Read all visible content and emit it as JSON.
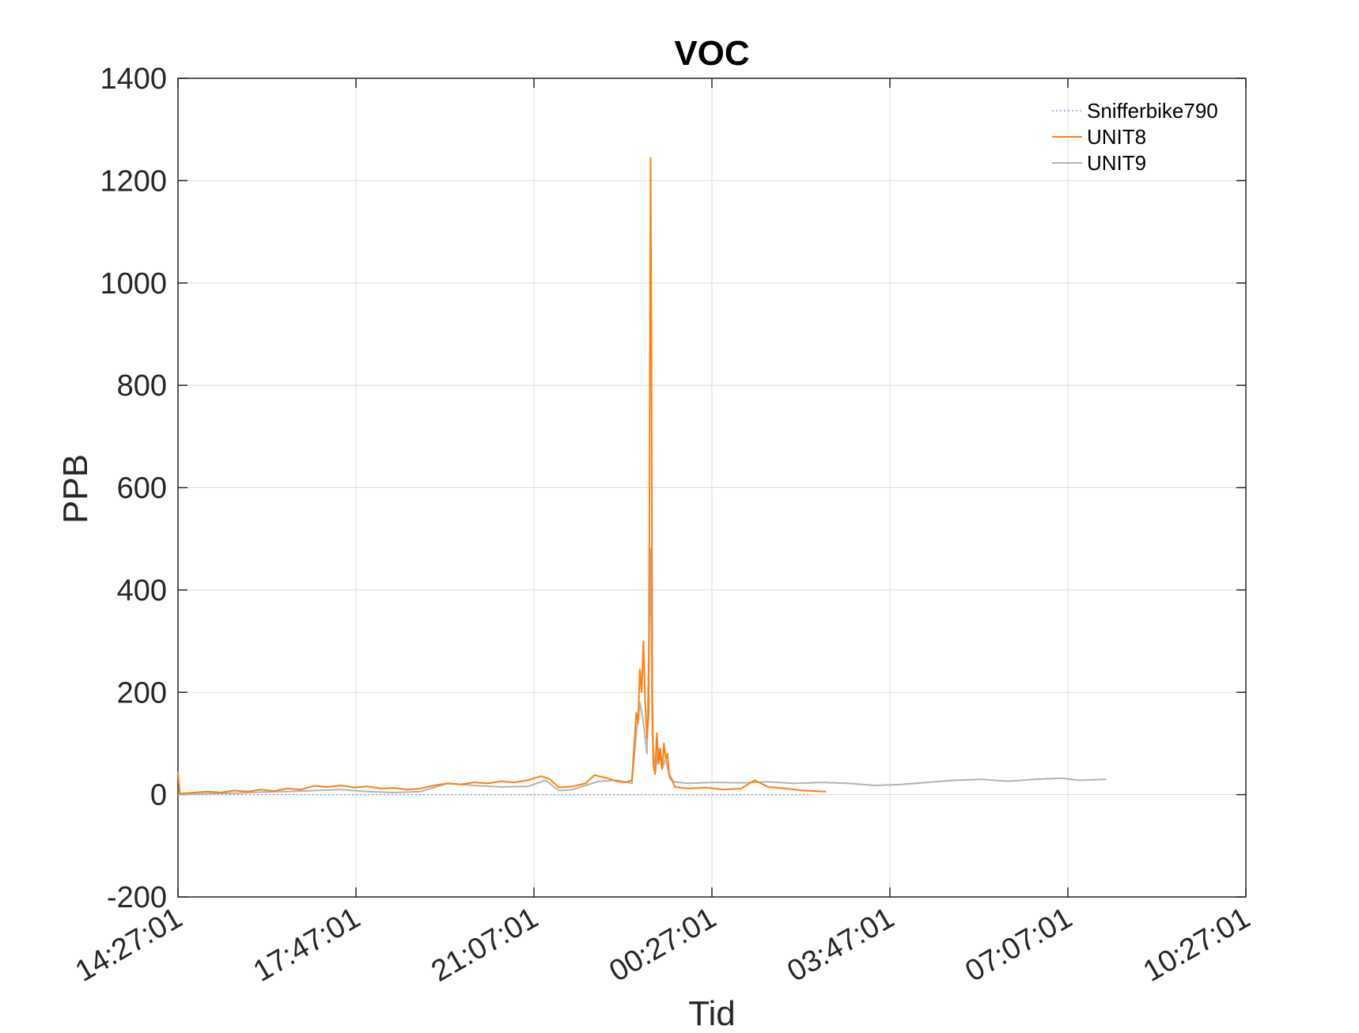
{
  "chart_data": {
    "type": "line",
    "title": "VOC",
    "xlabel": "Tid",
    "ylabel": "PPB",
    "ylim": [
      -200,
      1400
    ],
    "yticks": [
      -200,
      0,
      200,
      400,
      600,
      800,
      1000,
      1200,
      1400
    ],
    "xticks": [
      "14:27:01",
      "17:47:01",
      "21:07:01",
      "00:27:01",
      "03:47:01",
      "07:07:01",
      "10:27:01"
    ],
    "xlim": [
      "14:27:01",
      "10:27:01"
    ],
    "grid": true,
    "legend_position": "top-right",
    "colors": {
      "Snifferbike790": "#7fa7d9",
      "UNIT8": "#ff7f0e",
      "UNIT9": "#b3b3b3"
    },
    "series": [
      {
        "name": "Snifferbike790",
        "style": "dotted",
        "points": [
          [
            "14:27:01",
            0
          ],
          [
            "17:47:01",
            0
          ],
          [
            "21:07:01",
            0
          ],
          [
            "00:27:01",
            0
          ],
          [
            "02:17:01",
            0
          ]
        ]
      },
      {
        "name": "UNIT8",
        "style": "solid",
        "points": [
          [
            "14:27:01",
            45
          ],
          [
            "14:29:01",
            2
          ],
          [
            "14:45:01",
            4
          ],
          [
            "15:00:01",
            6
          ],
          [
            "15:15:01",
            4
          ],
          [
            "15:30:01",
            8
          ],
          [
            "15:45:01",
            6
          ],
          [
            "16:00:01",
            10
          ],
          [
            "16:15:01",
            7
          ],
          [
            "16:30:01",
            12
          ],
          [
            "16:45:01",
            10
          ],
          [
            "17:00:01",
            17
          ],
          [
            "17:15:01",
            15
          ],
          [
            "17:30:01",
            18
          ],
          [
            "17:45:01",
            14
          ],
          [
            "18:00:01",
            16
          ],
          [
            "18:15:01",
            12
          ],
          [
            "18:30:01",
            13
          ],
          [
            "18:45:01",
            10
          ],
          [
            "19:00:01",
            12
          ],
          [
            "19:15:01",
            18
          ],
          [
            "19:30:01",
            22
          ],
          [
            "19:45:01",
            20
          ],
          [
            "20:00:01",
            24
          ],
          [
            "20:15:01",
            22
          ],
          [
            "20:30:01",
            26
          ],
          [
            "20:45:01",
            24
          ],
          [
            "21:00:01",
            28
          ],
          [
            "21:07:01",
            32
          ],
          [
            "21:15:01",
            36
          ],
          [
            "21:25:01",
            30
          ],
          [
            "21:35:01",
            14
          ],
          [
            "21:50:01",
            16
          ],
          [
            "22:05:01",
            22
          ],
          [
            "22:15:01",
            38
          ],
          [
            "22:30:01",
            32
          ],
          [
            "22:40:01",
            26
          ],
          [
            "22:50:01",
            24
          ],
          [
            "22:57:01",
            28
          ],
          [
            "23:02:01",
            160
          ],
          [
            "23:04:01",
            140
          ],
          [
            "23:06:01",
            245
          ],
          [
            "23:08:01",
            200
          ],
          [
            "23:10:01",
            300
          ],
          [
            "23:12:01",
            180
          ],
          [
            "23:14:01",
            110
          ],
          [
            "23:16:01",
            160
          ],
          [
            "23:18:01",
            1245
          ],
          [
            "23:19:01",
            900
          ],
          [
            "23:20:01",
            200
          ],
          [
            "23:21:01",
            60
          ],
          [
            "23:23:01",
            40
          ],
          [
            "23:25:01",
            120
          ],
          [
            "23:27:01",
            60
          ],
          [
            "23:29:01",
            90
          ],
          [
            "23:31:01",
            50
          ],
          [
            "23:33:01",
            100
          ],
          [
            "23:35:01",
            70
          ],
          [
            "23:37:01",
            80
          ],
          [
            "23:39:01",
            40
          ],
          [
            "23:42:01",
            30
          ],
          [
            "23:45:01",
            15
          ],
          [
            "24:00:01",
            12
          ],
          [
            "24:20:01",
            14
          ],
          [
            "24:40:01",
            10
          ],
          [
            "25:00:01",
            12
          ],
          [
            "25:15:01",
            28
          ],
          [
            "25:30:01",
            15
          ],
          [
            "25:50:01",
            12
          ],
          [
            "26:10:01",
            8
          ],
          [
            "26:35:01",
            6
          ]
        ]
      },
      {
        "name": "UNIT9",
        "style": "solid",
        "points": [
          [
            "14:27:01",
            0
          ],
          [
            "15:00:01",
            2
          ],
          [
            "15:30:01",
            3
          ],
          [
            "16:00:01",
            5
          ],
          [
            "16:30:01",
            6
          ],
          [
            "17:00:01",
            8
          ],
          [
            "17:30:01",
            10
          ],
          [
            "18:00:01",
            6
          ],
          [
            "18:30:01",
            4
          ],
          [
            "19:00:01",
            6
          ],
          [
            "19:30:01",
            22
          ],
          [
            "20:00:01",
            18
          ],
          [
            "20:30:01",
            15
          ],
          [
            "21:00:01",
            16
          ],
          [
            "21:07:01",
            20
          ],
          [
            "21:20:01",
            28
          ],
          [
            "21:35:01",
            8
          ],
          [
            "21:50:01",
            10
          ],
          [
            "22:05:01",
            18
          ],
          [
            "22:20:01",
            26
          ],
          [
            "22:40:01",
            28
          ],
          [
            "22:57:01",
            22
          ],
          [
            "23:02:01",
            120
          ],
          [
            "23:06:01",
            180
          ],
          [
            "23:10:01",
            140
          ],
          [
            "23:14:01",
            80
          ],
          [
            "23:18:01",
            480
          ],
          [
            "23:20:01",
            120
          ],
          [
            "23:23:01",
            40
          ],
          [
            "23:27:01",
            90
          ],
          [
            "23:31:01",
            50
          ],
          [
            "23:35:01",
            70
          ],
          [
            "23:40:01",
            30
          ],
          [
            "23:45:01",
            25
          ],
          [
            "24:00:01",
            22
          ],
          [
            "24:30:01",
            24
          ],
          [
            "25:00:01",
            23
          ],
          [
            "25:30:01",
            25
          ],
          [
            "26:00:01",
            22
          ],
          [
            "26:30:01",
            24
          ],
          [
            "27:00:01",
            22
          ],
          [
            "27:30:01",
            18
          ],
          [
            "28:00:01",
            20
          ],
          [
            "28:30:01",
            24
          ],
          [
            "29:00:01",
            28
          ],
          [
            "29:30:01",
            30
          ],
          [
            "30:00:01",
            26
          ],
          [
            "30:30:01",
            30
          ],
          [
            "31:00:01",
            32
          ],
          [
            "31:20:01",
            28
          ],
          [
            "31:50:01",
            30
          ]
        ]
      }
    ]
  }
}
